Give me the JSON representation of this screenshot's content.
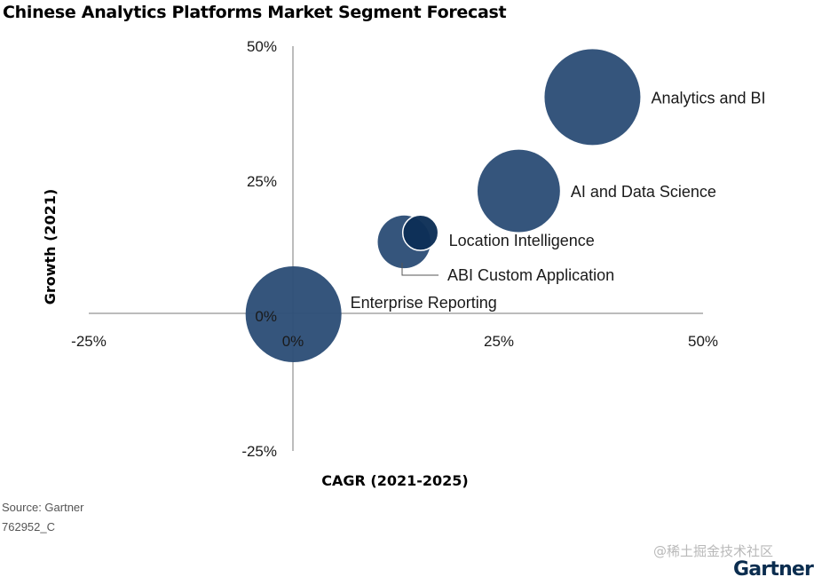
{
  "chart_data": {
    "type": "scatter",
    "title": "Chinese Analytics Platforms Market Segment Forecast",
    "xlabel": "CAGR (2021-2025)",
    "ylabel": "Growth (2021)",
    "xlim": [
      -25,
      50
    ],
    "ylim": [
      -25,
      50
    ],
    "x_ticks": [
      "-25%",
      "0%",
      "25%",
      "50%"
    ],
    "y_ticks": [
      "50%",
      "25%",
      "0%",
      "-25%"
    ],
    "grid": false,
    "bubble_color": "#2e5078",
    "overlap_color": "#0d2f57",
    "points": [
      {
        "name": "Analytics and BI",
        "x": 36.5,
        "y": 40.5,
        "size": 1.0
      },
      {
        "name": "AI and Data Science",
        "x": 27.5,
        "y": 23.0,
        "size": 0.86
      },
      {
        "name": "Location Intelligence",
        "x": 15.5,
        "y": 15.2,
        "size": 0.37
      },
      {
        "name": "ABI Custom Application",
        "x": 13.5,
        "y": 13.5,
        "size": 0.55
      },
      {
        "name": "Enterprise Reporting",
        "x": 0,
        "y": 0,
        "size": 1.0
      }
    ]
  },
  "footer": {
    "source": "Source: Gartner",
    "code": "762952_C"
  },
  "watermark": "@稀土掘金技术社区",
  "brand": "Gartner"
}
